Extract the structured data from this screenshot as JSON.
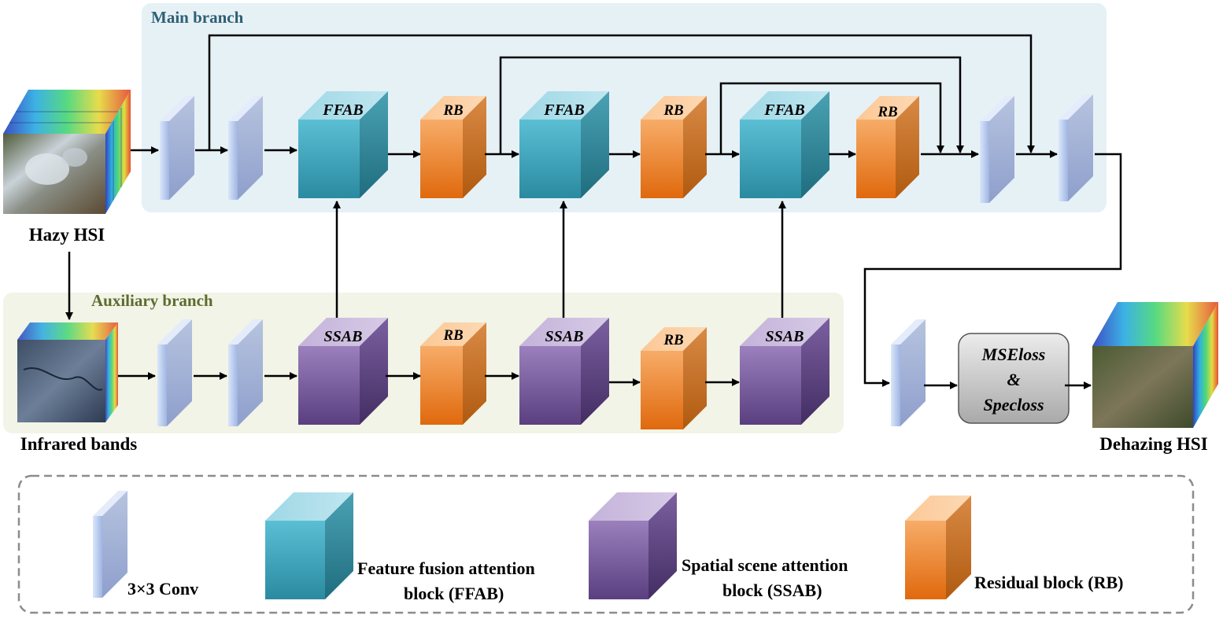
{
  "main_branch": {
    "title": "Main branch"
  },
  "aux_branch": {
    "title": "Auxiliary branch"
  },
  "inputs": {
    "hazy": "Hazy HSI",
    "infrared": "Infrared bands"
  },
  "output": {
    "label": "Dehazing HSI"
  },
  "blocks": {
    "ffab": "FFAB",
    "rb": "RB",
    "ssab": "SSAB"
  },
  "loss": {
    "line1": "MSEloss",
    "line2": "&",
    "line3": "Specloss"
  },
  "legend": {
    "conv": "3×3 Conv",
    "ffab_line1": "Feature fusion attention",
    "ffab_line2": "block (FFAB)",
    "ssab_line1": "Spatial scene attention",
    "ssab_line2": "block (SSAB)",
    "rb": "Residual block (RB)"
  },
  "colors": {
    "ffab": "#3aa8be",
    "ssab": "#7d5fa3",
    "rb": "#f0872e",
    "conv": "#a9bde4",
    "main_bg": "#e6f1f6",
    "aux_bg": "#f1f4e6"
  }
}
